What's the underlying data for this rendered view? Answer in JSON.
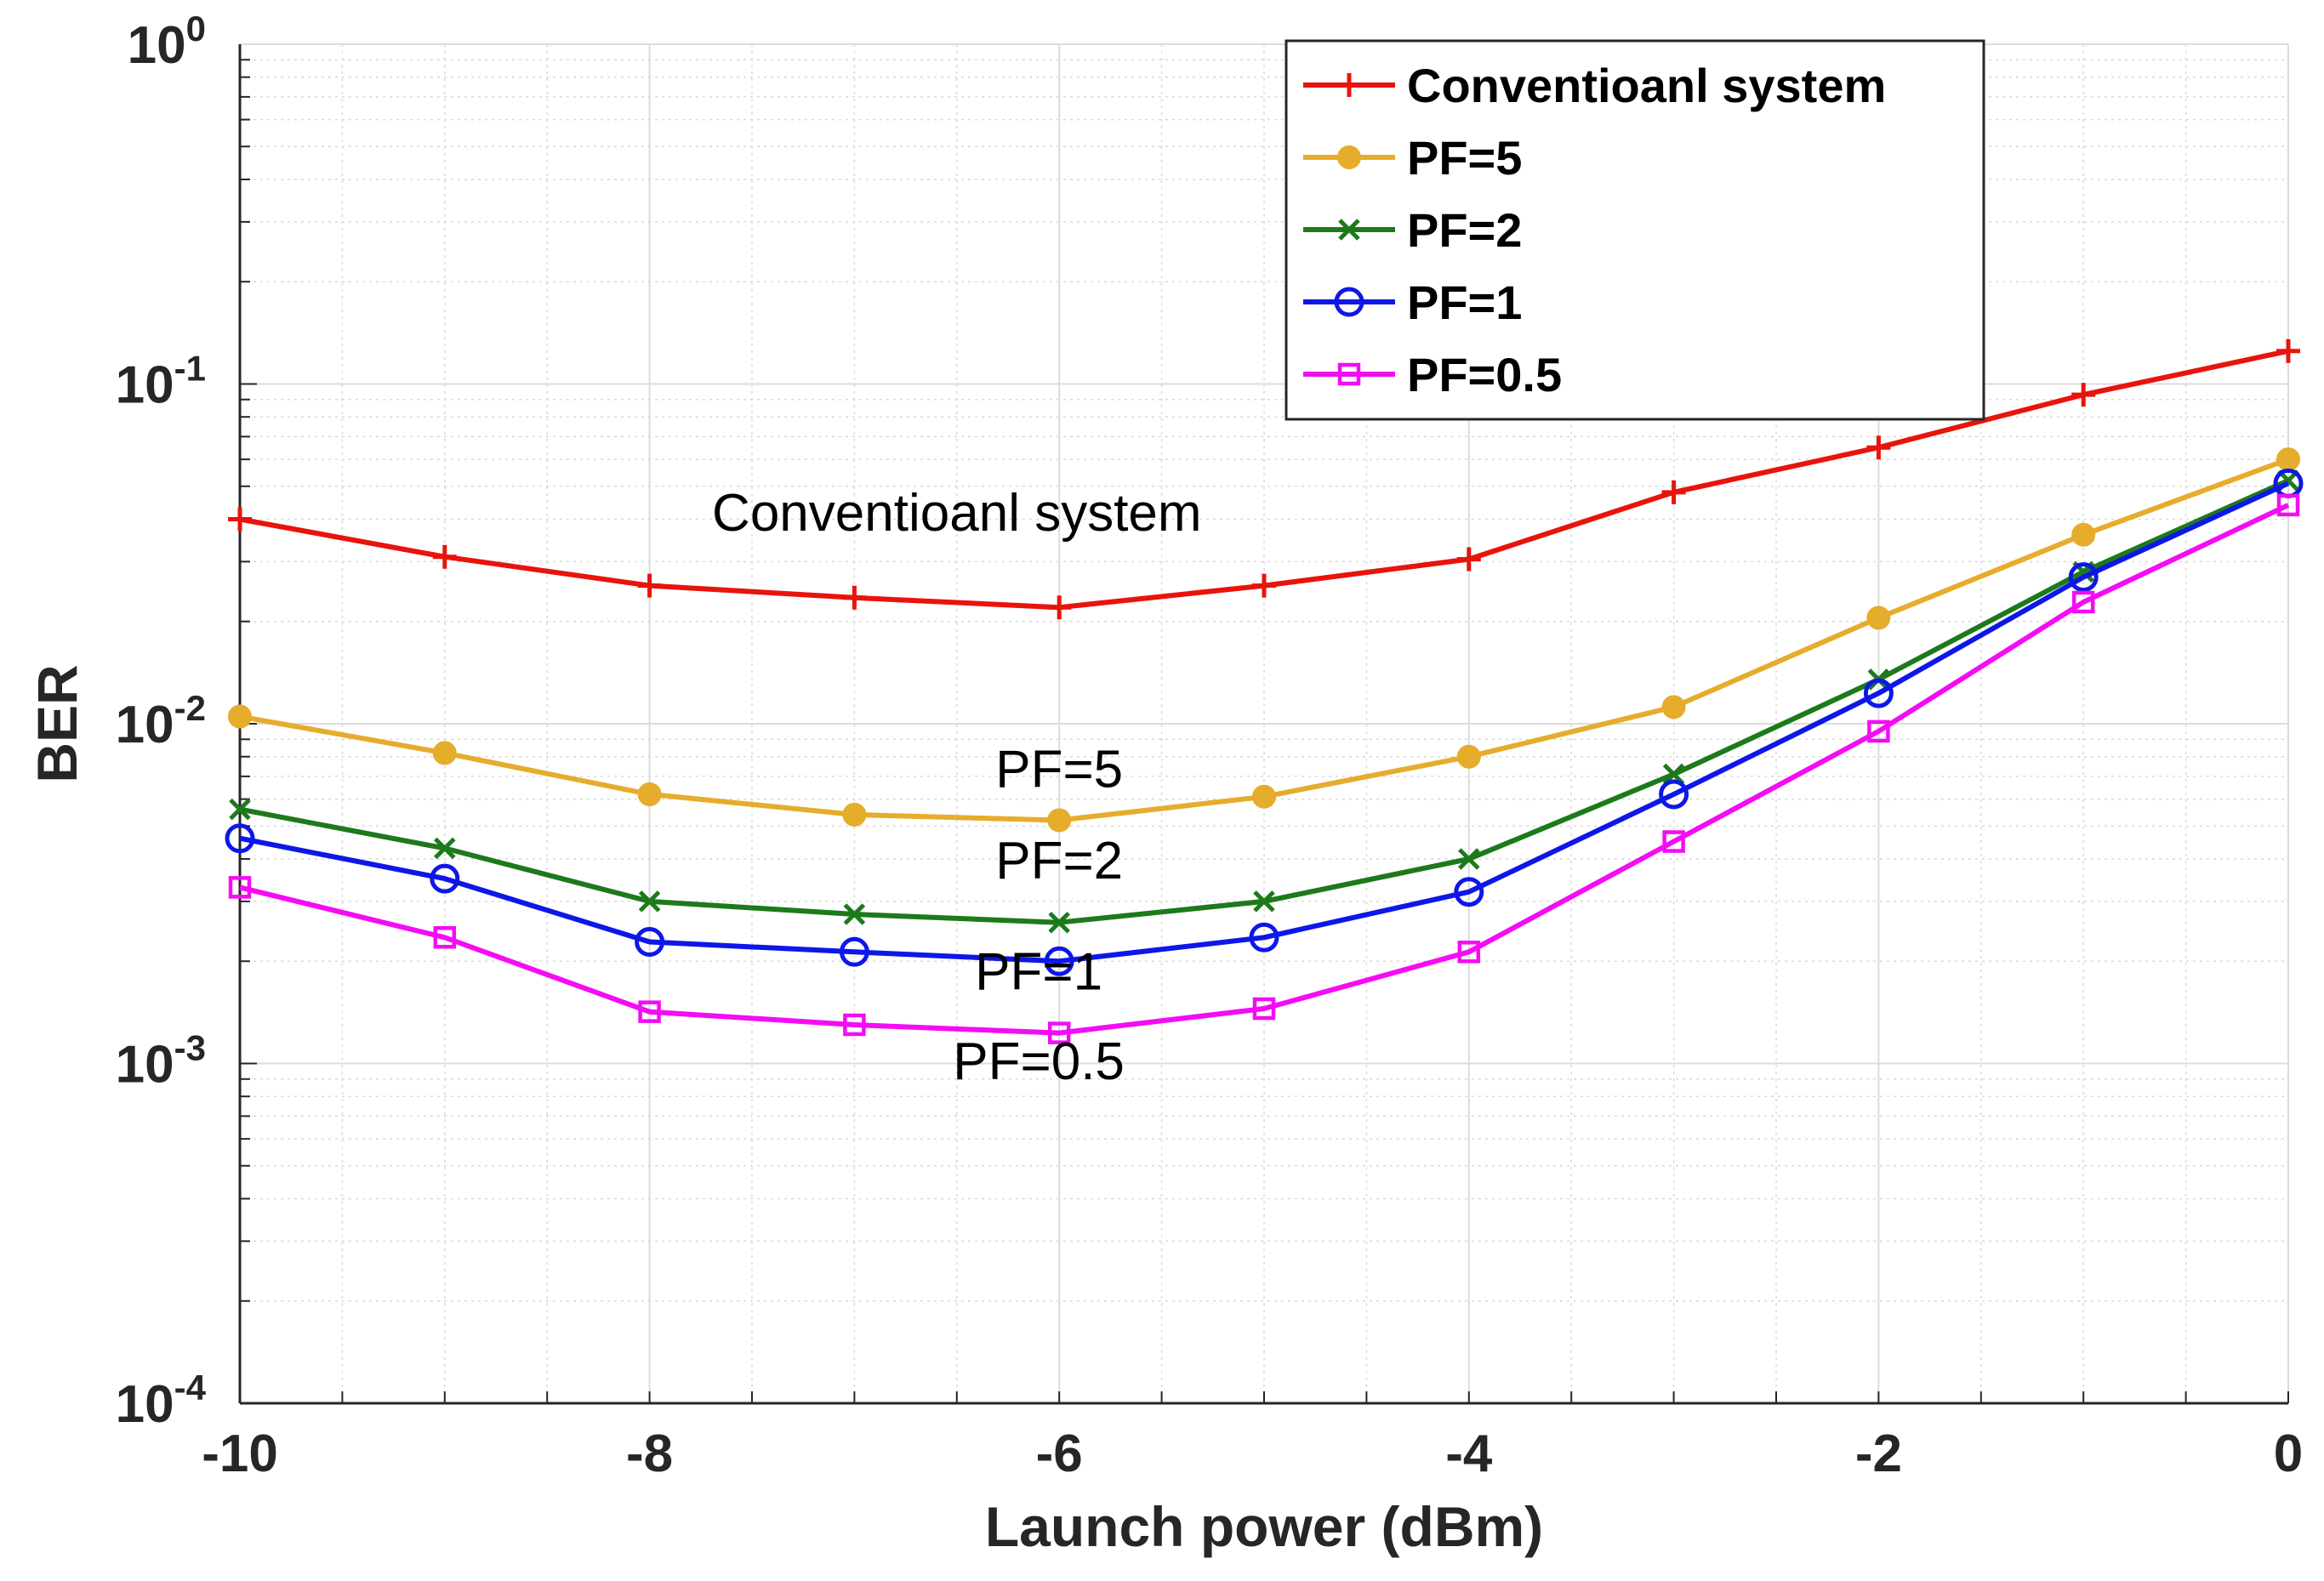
{
  "chart_data": {
    "type": "line",
    "title": "",
    "xlabel": "Launch power (dBm)",
    "ylabel": "BER",
    "xlim": [
      -10,
      0
    ],
    "ylim": [
      0.0001,
      1
    ],
    "yscale": "log",
    "grid": true,
    "legend_position": "top-right",
    "x": [
      -10,
      -9,
      -8,
      -7,
      -6,
      -5,
      -4,
      -3,
      -2,
      -1,
      0
    ],
    "x_ticks": [
      "-10",
      "-8",
      "-6",
      "-4",
      "-2",
      "0"
    ],
    "y_ticks": [
      {
        "base": "10",
        "exp": "0"
      },
      {
        "base": "10",
        "exp": "-1"
      },
      {
        "base": "10",
        "exp": "-2"
      },
      {
        "base": "10",
        "exp": "-3"
      },
      {
        "base": "10",
        "exp": "-4"
      }
    ],
    "series": [
      {
        "name": "Conventioanl system",
        "color": "#e8140c",
        "marker": "plus",
        "values": [
          0.04,
          0.031,
          0.0255,
          0.0235,
          0.022,
          0.0255,
          0.0305,
          0.048,
          0.065,
          0.093,
          0.125
        ]
      },
      {
        "name": "PF=5",
        "color": "#e6ac2c",
        "marker": "dot",
        "values": [
          0.0105,
          0.0082,
          0.0062,
          0.0054,
          0.0052,
          0.0061,
          0.008,
          0.0112,
          0.0205,
          0.036,
          0.06
        ]
      },
      {
        "name": "PF=2",
        "color": "#1d7a1b",
        "marker": "x",
        "values": [
          0.0056,
          0.0043,
          0.003,
          0.00275,
          0.0026,
          0.003,
          0.004,
          0.0071,
          0.0135,
          0.028,
          0.052
        ]
      },
      {
        "name": "PF=1",
        "color": "#0d17e8",
        "marker": "circle",
        "values": [
          0.0046,
          0.0035,
          0.00228,
          0.00213,
          0.002,
          0.00235,
          0.0032,
          0.0062,
          0.0123,
          0.027,
          0.051
        ]
      },
      {
        "name": "PF=0.5",
        "color": "#f40cf4",
        "marker": "square",
        "values": [
          0.0033,
          0.00235,
          0.00142,
          0.0013,
          0.00123,
          0.00145,
          0.00213,
          0.0045,
          0.0095,
          0.0228,
          0.044
        ]
      }
    ],
    "annotations": [
      {
        "text": "Conventioanl system",
        "x": -6.5,
        "y": 0.037
      },
      {
        "text": "PF=5",
        "x": -6.0,
        "y": 0.0065
      },
      {
        "text": "PF=2",
        "x": -6.0,
        "y": 0.0035
      },
      {
        "text": "PF=1",
        "x": -6.1,
        "y": 0.00165
      },
      {
        "text": "PF=0.5",
        "x": -6.1,
        "y": 0.0009
      }
    ]
  }
}
